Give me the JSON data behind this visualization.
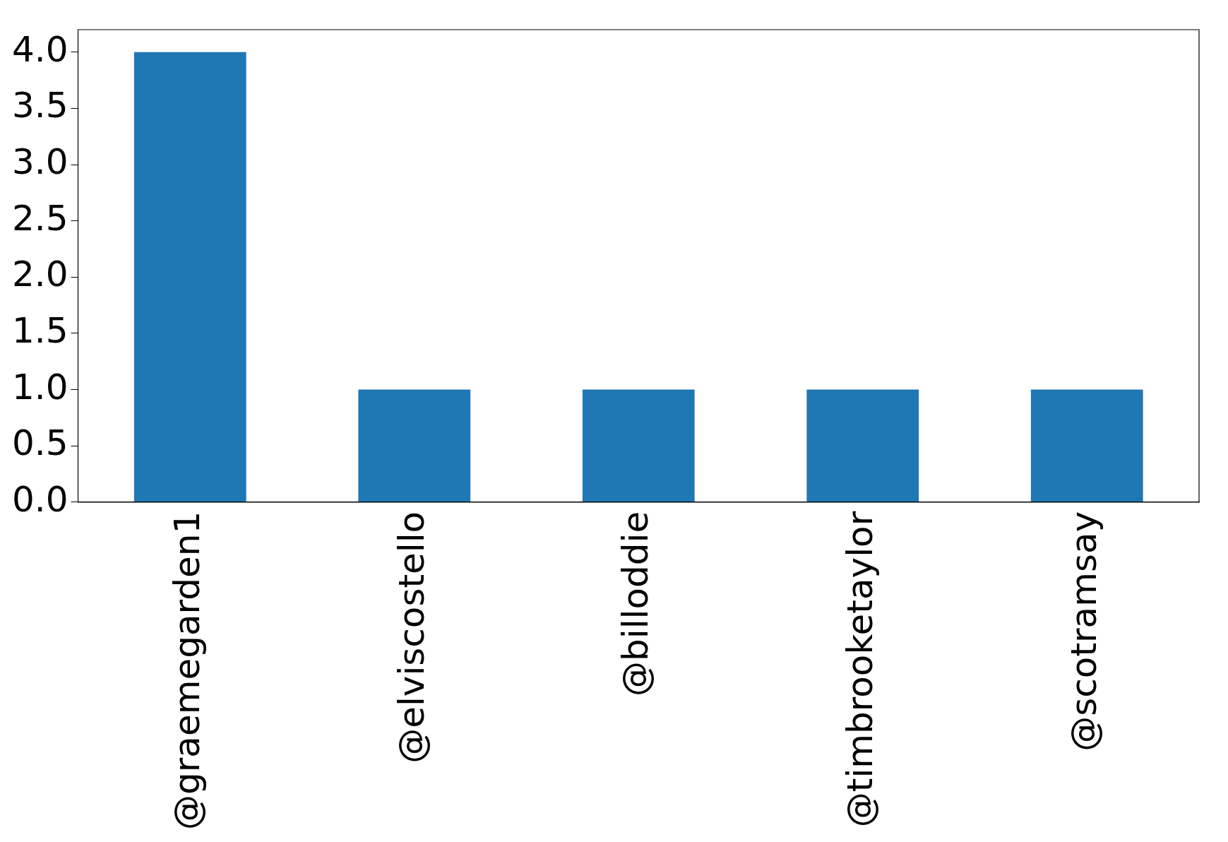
{
  "chart_data": {
    "type": "bar",
    "categories": [
      "@graemegarden1",
      "@elviscostello",
      "@billoddie",
      "@timbrooketaylor",
      "@scotramsay"
    ],
    "values": [
      4,
      1,
      1,
      1,
      1
    ],
    "color": "#1f77b4",
    "ylim": [
      0,
      4.2
    ],
    "yticks": [
      {
        "value": 0,
        "label": "0.0"
      },
      {
        "value": 0.5,
        "label": "0.5"
      },
      {
        "value": 1,
        "label": "1.0"
      },
      {
        "value": 1.5,
        "label": "1.5"
      },
      {
        "value": 2,
        "label": "2.0"
      },
      {
        "value": 2.5,
        "label": "2.5"
      },
      {
        "value": 3,
        "label": "3.0"
      },
      {
        "value": 3.5,
        "label": "3.5"
      },
      {
        "value": 4,
        "label": "4.0"
      }
    ],
    "grid": false,
    "legend": false
  }
}
